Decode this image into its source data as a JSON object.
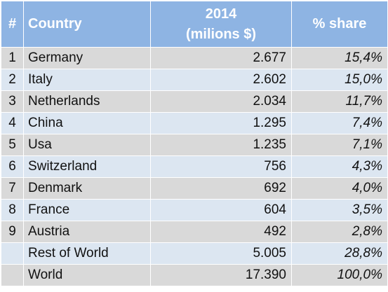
{
  "table": {
    "headers": {
      "index": "#",
      "country": "Country",
      "value_line1": "2014",
      "value_line2": "(milions $)",
      "share": "% share"
    },
    "rows": [
      {
        "index": "1",
        "country": "Germany",
        "value": "2.677",
        "share": "15,4%"
      },
      {
        "index": "2",
        "country": "Italy",
        "value": "2.602",
        "share": "15,0%"
      },
      {
        "index": "3",
        "country": "Netherlands",
        "value": "2.034",
        "share": "11,7%"
      },
      {
        "index": "4",
        "country": "China",
        "value": "1.295",
        "share": "7,4%"
      },
      {
        "index": "5",
        "country": "Usa",
        "value": "1.235",
        "share": "7,1%"
      },
      {
        "index": "6",
        "country": "Switzerland",
        "value": "756",
        "share": "4,3%"
      },
      {
        "index": "7",
        "country": "Denmark",
        "value": "692",
        "share": "4,0%"
      },
      {
        "index": "8",
        "country": "France",
        "value": "604",
        "share": "3,5%"
      },
      {
        "index": "9",
        "country": "Austria",
        "value": "492",
        "share": "2,8%"
      },
      {
        "index": "",
        "country": "Rest of World",
        "value": "5.005",
        "share": "28,8%"
      },
      {
        "index": "",
        "country": "World",
        "value": "17.390",
        "share": "100,0%"
      }
    ],
    "colors": {
      "header_bg": "#8eb4e3",
      "header_text": "#ffffff",
      "row_odd_bg": "#d9d9d9",
      "row_even_bg": "#dce6f1",
      "grid": "#ffffff"
    }
  }
}
